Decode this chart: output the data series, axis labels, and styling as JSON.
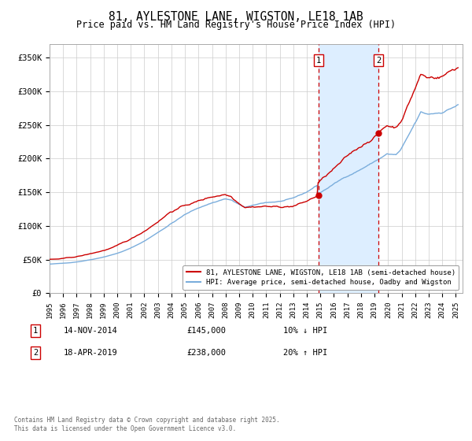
{
  "title": "81, AYLESTONE LANE, WIGSTON, LE18 1AB",
  "subtitle": "Price paid vs. HM Land Registry's House Price Index (HPI)",
  "hpi_label": "HPI: Average price, semi-detached house, Oadby and Wigston",
  "property_label": "81, AYLESTONE LANE, WIGSTON, LE18 1AB (semi-detached house)",
  "sale1_date": "14-NOV-2014",
  "sale1_price": 145000,
  "sale1_pct": "10% ↓ HPI",
  "sale1_marker_x": 2014.87,
  "sale2_date": "18-APR-2019",
  "sale2_price": 238000,
  "sale2_pct": "20% ↑ HPI",
  "sale2_marker_x": 2019.29,
  "red_line_color": "#cc0000",
  "blue_line_color": "#7aaddc",
  "shading_color": "#ddeeff",
  "background_color": "#ffffff",
  "grid_color": "#cccccc",
  "title_fontsize": 11,
  "subtitle_fontsize": 9,
  "ylabel_vals": [
    "£0",
    "£50K",
    "£100K",
    "£150K",
    "£200K",
    "£250K",
    "£300K",
    "£350K"
  ],
  "ylim": [
    0,
    370000
  ],
  "xlim_start": 1995,
  "xlim_end": 2025.5
}
